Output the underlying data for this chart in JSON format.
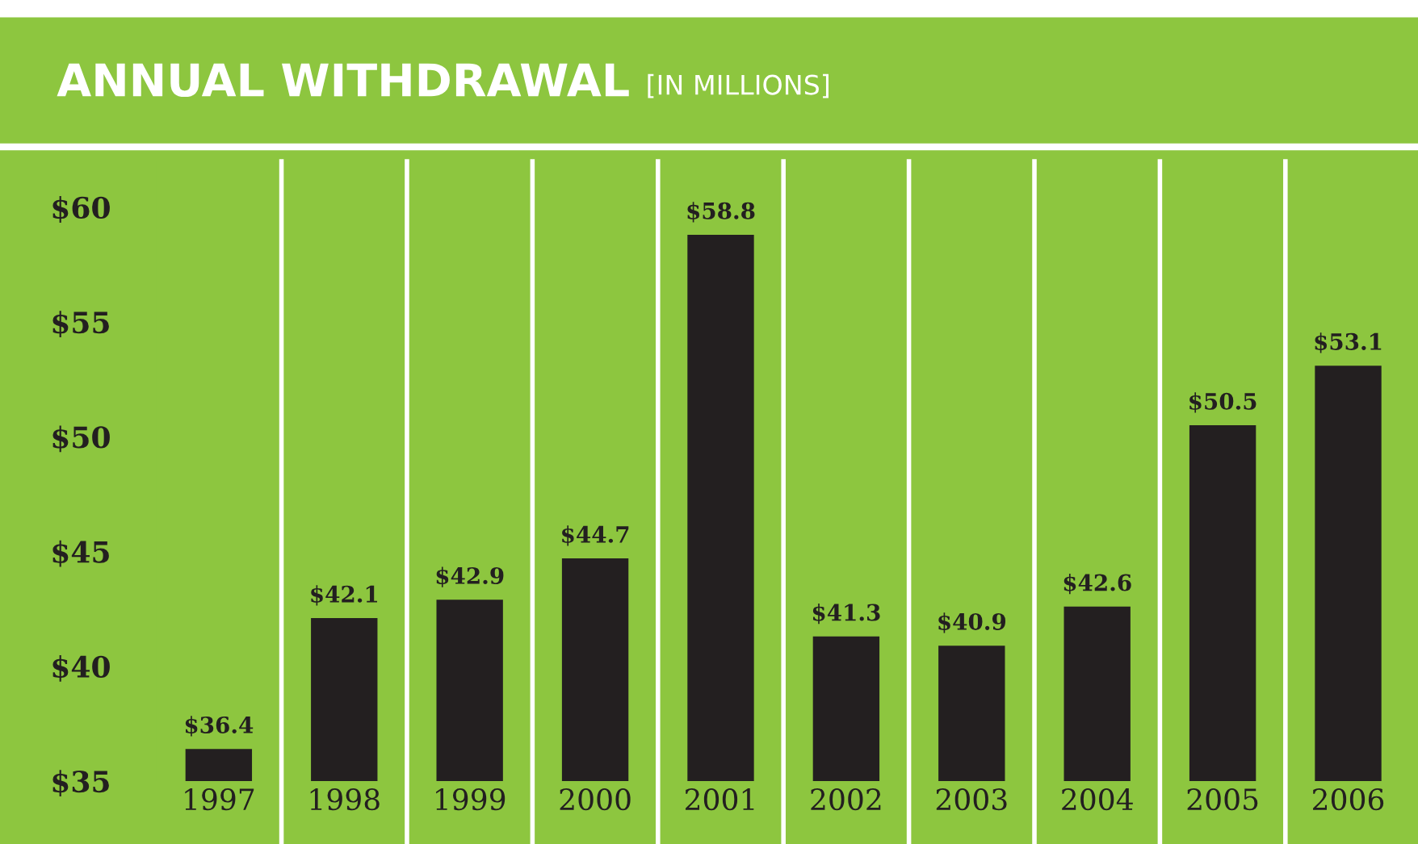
{
  "chart_data": {
    "type": "bar",
    "title": "ANNUAL WITHDRAWAL",
    "subtitle": "[IN MILLIONS]",
    "categories": [
      "1997",
      "1998",
      "1999",
      "2000",
      "2001",
      "2002",
      "2003",
      "2004",
      "2005",
      "2006"
    ],
    "values": [
      36.4,
      42.1,
      42.9,
      44.7,
      58.8,
      41.3,
      40.9,
      42.6,
      50.5,
      53.1
    ],
    "value_labels": [
      "$36.4",
      "$42.1",
      "$42.9",
      "$44.7",
      "$58.8",
      "$41.3",
      "$40.9",
      "$42.6",
      "$50.5",
      "$53.1"
    ],
    "color": "#231f20",
    "ylim": [
      35,
      62
    ],
    "yticks": [
      {
        "value": 35,
        "label": "$35"
      },
      {
        "value": 40,
        "label": "$40"
      },
      {
        "value": 45,
        "label": "$45"
      },
      {
        "value": 50,
        "label": "$50"
      },
      {
        "value": 55,
        "label": "$55"
      },
      {
        "value": 60,
        "label": "$60"
      }
    ],
    "grid": false,
    "legend": false
  }
}
